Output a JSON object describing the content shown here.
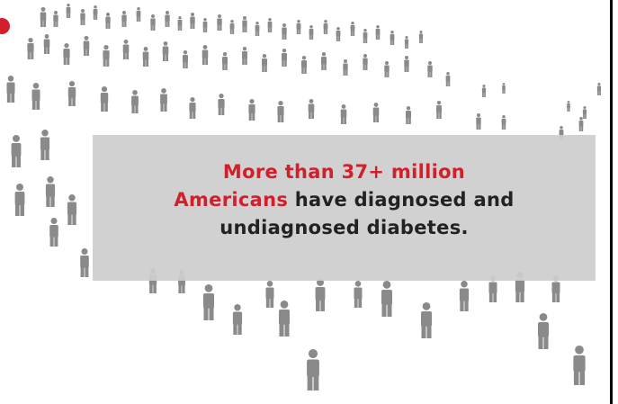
{
  "banner": {
    "line1_red": "More than 37+ million",
    "line2_red": "Americans",
    "line2_rest": " have diagnosed and",
    "line3": "undiagnosed diabetes."
  },
  "colors": {
    "accent_red": "#d21f2b",
    "figure_gray": "#8a8a8a",
    "banner_bg": "#cecece"
  },
  "icons": [
    "person-icon"
  ]
}
